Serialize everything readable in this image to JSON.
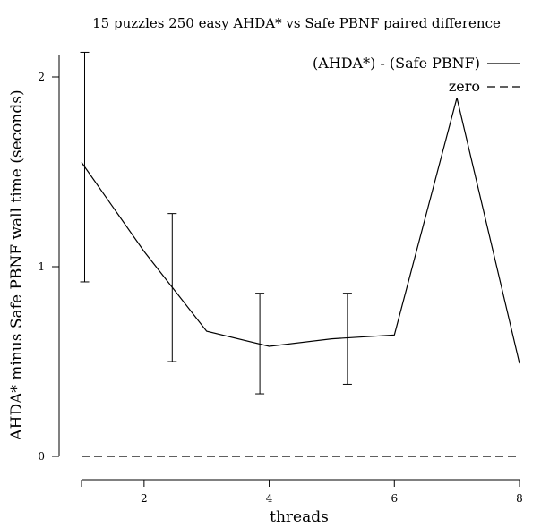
{
  "chart_data": {
    "type": "line",
    "title": "15 puzzles 250 easy AHDA* vs Safe PBNF paired difference",
    "xlabel": "threads",
    "ylabel": "AHDA* minus Safe PBNF wall time (seconds)",
    "xlim": [
      1,
      8
    ],
    "ylim": [
      0,
      2.1
    ],
    "xticks": [
      2,
      4,
      6,
      8
    ],
    "yticks": [
      0,
      1,
      2
    ],
    "grid": false,
    "legend_position": "top-right",
    "series": [
      {
        "name": "(AHDA*) - (Safe PBNF)",
        "style": "solid",
        "color": "#000000",
        "x": [
          1,
          2,
          3,
          4,
          5,
          6,
          7,
          8
        ],
        "y": [
          1.55,
          1.08,
          0.66,
          0.58,
          0.62,
          0.64,
          1.89,
          0.49
        ]
      },
      {
        "name": "zero",
        "style": "dashed",
        "color": "#000000",
        "x": [
          1,
          8
        ],
        "y": [
          0,
          0
        ]
      }
    ],
    "error_bars": [
      {
        "x": 1.05,
        "low": 0.92,
        "high": 2.13
      },
      {
        "x": 2.45,
        "low": 0.5,
        "high": 1.28
      },
      {
        "x": 3.85,
        "low": 0.33,
        "high": 0.86
      },
      {
        "x": 5.25,
        "low": 0.38,
        "high": 0.86
      }
    ]
  }
}
